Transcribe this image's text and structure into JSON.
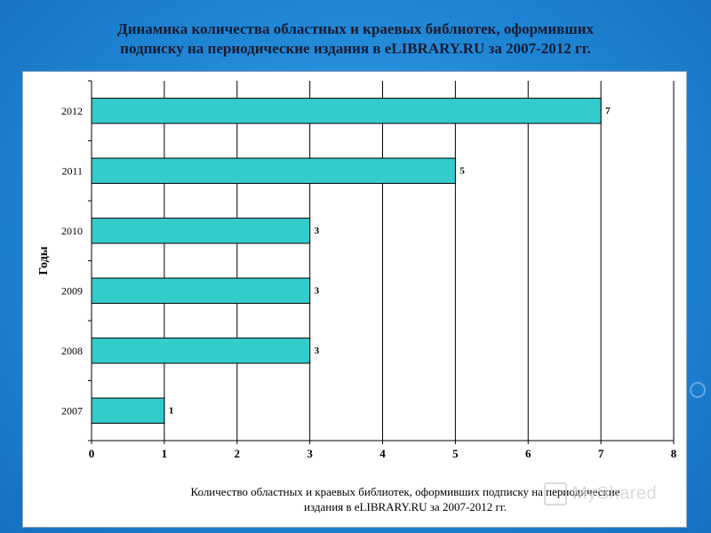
{
  "slide": {
    "title_line1": "Динамика количества областных и краевых библиотек, оформивших",
    "title_line2": "подписку на периодические издания в eLIBRARY.RU за 2007-2012 гг."
  },
  "chart_data": {
    "type": "bar",
    "orientation": "horizontal",
    "categories": [
      "2012",
      "2011",
      "2010",
      "2009",
      "2008",
      "2007"
    ],
    "values": [
      7,
      5,
      3,
      3,
      3,
      1
    ],
    "data_labels": [
      "7",
      "5",
      "3",
      "3",
      "3",
      "1"
    ],
    "xlabel_line1": "Количество областных и краевых библиотек, оформивших подписку на периодические",
    "xlabel_line2": "издания в eLIBRARY.RU за 2007-2012 гг.",
    "ylabel": "Годы",
    "xlim": [
      0,
      8
    ],
    "x_ticks": [
      "0",
      "1",
      "2",
      "3",
      "4",
      "5",
      "6",
      "7",
      "8"
    ],
    "grid": "vertical",
    "bar_color": "#33cccc",
    "legend": "none"
  },
  "watermark": "MyShared"
}
